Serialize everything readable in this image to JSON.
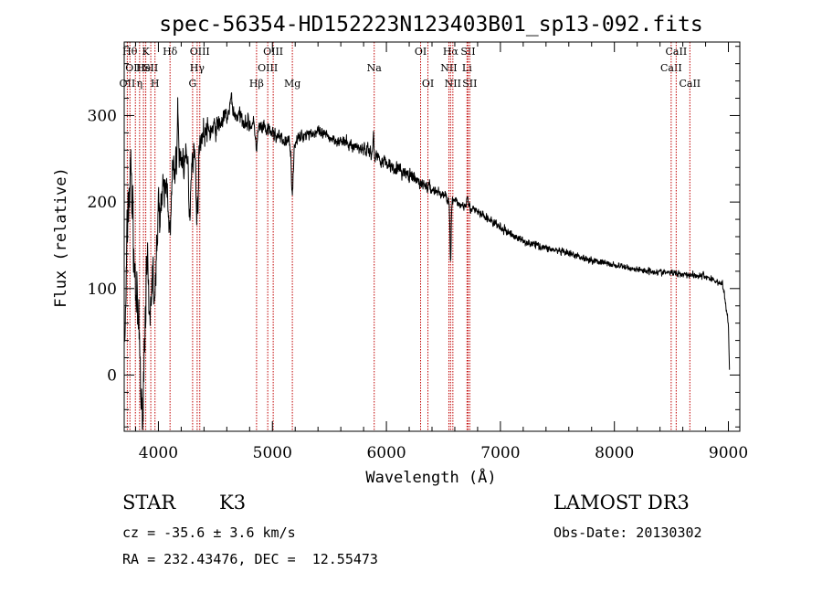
{
  "chart_data": {
    "type": "line",
    "title": "spec-56354-HD152223N123403B01_sp13-092.fits",
    "xlabel": "Wavelength (Å)",
    "ylabel": "Flux (relative)",
    "xlim": [
      3700,
      9100
    ],
    "ylim": [
      -65,
      385
    ],
    "xticks": [
      4000,
      5000,
      6000,
      7000,
      8000,
      9000
    ],
    "xtick_labels": [
      "4000",
      "5000",
      "6000",
      "7000",
      "8000",
      "9000"
    ],
    "yticks": [
      0,
      100,
      200,
      300
    ],
    "ytick_labels": [
      "0",
      "100",
      "200",
      "300"
    ],
    "line_color": "#000000",
    "marker_color": "#c00000",
    "spectrum_anchors": [
      [
        3710,
        50
      ],
      [
        3730,
        180
      ],
      [
        3760,
        240
      ],
      [
        3790,
        120
      ],
      [
        3820,
        60
      ],
      [
        3850,
        30
      ],
      [
        3880,
        80
      ],
      [
        3910,
        150
      ],
      [
        3940,
        110
      ],
      [
        3970,
        170
      ],
      [
        4000,
        190
      ],
      [
        4050,
        210
      ],
      [
        4100,
        230
      ],
      [
        4150,
        240
      ],
      [
        4200,
        250
      ],
      [
        4250,
        245
      ],
      [
        4300,
        255
      ],
      [
        4350,
        270
      ],
      [
        4400,
        280
      ],
      [
        4500,
        285
      ],
      [
        4600,
        300
      ],
      [
        4700,
        300
      ],
      [
        4800,
        290
      ],
      [
        4900,
        285
      ],
      [
        5000,
        280
      ],
      [
        5100,
        270
      ],
      [
        5200,
        270
      ],
      [
        5300,
        280
      ],
      [
        5400,
        280
      ],
      [
        5500,
        275
      ],
      [
        5600,
        270
      ],
      [
        5700,
        265
      ],
      [
        5800,
        262
      ],
      [
        5900,
        255
      ],
      [
        6000,
        245
      ],
      [
        6100,
        238
      ],
      [
        6200,
        230
      ],
      [
        6300,
        222
      ],
      [
        6400,
        215
      ],
      [
        6500,
        208
      ],
      [
        6600,
        200
      ],
      [
        6700,
        195
      ],
      [
        6800,
        188
      ],
      [
        6900,
        180
      ],
      [
        7000,
        170
      ],
      [
        7200,
        155
      ],
      [
        7400,
        147
      ],
      [
        7600,
        140
      ],
      [
        7800,
        133
      ],
      [
        8000,
        127
      ],
      [
        8200,
        122
      ],
      [
        8400,
        119
      ],
      [
        8600,
        117
      ],
      [
        8800,
        114
      ],
      [
        8950,
        105
      ],
      [
        9000,
        60
      ],
      [
        9010,
        0
      ]
    ],
    "spectrum_features": [
      [
        3860,
        -100,
        12
      ],
      [
        3920,
        -80,
        10
      ],
      [
        3970,
        -90,
        10
      ],
      [
        4102,
        -70,
        10
      ],
      [
        4170,
        60,
        6
      ],
      [
        4275,
        -60,
        8
      ],
      [
        4340,
        -80,
        10
      ],
      [
        4640,
        20,
        10
      ],
      [
        4861,
        -25,
        8
      ],
      [
        5175,
        -60,
        8
      ],
      [
        5890,
        45,
        6
      ],
      [
        5893,
        -40,
        5
      ],
      [
        6563,
        -75,
        5
      ],
      [
        6710,
        15,
        8
      ]
    ],
    "spectrum_noise": [
      [
        3700,
        60
      ],
      [
        3950,
        40
      ],
      [
        4200,
        28
      ],
      [
        4600,
        15
      ],
      [
        5000,
        12
      ],
      [
        5500,
        9
      ],
      [
        6000,
        12
      ],
      [
        6500,
        9
      ],
      [
        7000,
        7
      ],
      [
        8000,
        5
      ],
      [
        9000,
        6
      ]
    ],
    "line_markers": [
      {
        "wavelength": 3727,
        "label": "OII",
        "row": 3
      },
      {
        "wavelength": 3750,
        "label": "Hθ",
        "row": 1
      },
      {
        "wavelength": 3798,
        "label": "OIII",
        "row": 2
      },
      {
        "wavelength": 3835,
        "label": "η",
        "row": 3
      },
      {
        "wavelength": 3869,
        "label": "He",
        "row": 2
      },
      {
        "wavelength": 3889,
        "label": "K",
        "row": 1
      },
      {
        "wavelength": 3933,
        "label": "SII",
        "row": 2
      },
      {
        "wavelength": 3970,
        "label": "H",
        "row": 3
      },
      {
        "wavelength": 4102,
        "label": "Hδ",
        "row": 1
      },
      {
        "wavelength": 4300,
        "label": "G",
        "row": 3
      },
      {
        "wavelength": 4340,
        "label": "Hγ",
        "row": 2
      },
      {
        "wavelength": 4363,
        "label": "OIII",
        "row": 1
      },
      {
        "wavelength": 4861,
        "label": "Hβ",
        "row": 3
      },
      {
        "wavelength": 4959,
        "label": "OIII",
        "row": 2
      },
      {
        "wavelength": 5007,
        "label": "OIII",
        "row": 1
      },
      {
        "wavelength": 5175,
        "label": "Mg",
        "row": 3
      },
      {
        "wavelength": 5893,
        "label": "Na",
        "row": 2
      },
      {
        "wavelength": 6300,
        "label": "OI",
        "row": 1
      },
      {
        "wavelength": 6364,
        "label": "OI",
        "row": 3
      },
      {
        "wavelength": 6548,
        "label": "NII",
        "row": 2
      },
      {
        "wavelength": 6563,
        "label": "Hα",
        "row": 1
      },
      {
        "wavelength": 6583,
        "label": "NII",
        "row": 3
      },
      {
        "wavelength": 6707,
        "label": "Li",
        "row": 2
      },
      {
        "wavelength": 6716,
        "label": "SII",
        "row": 1
      },
      {
        "wavelength": 6731,
        "label": "SII",
        "row": 3
      },
      {
        "wavelength": 8498,
        "label": "CaII",
        "row": 2
      },
      {
        "wavelength": 8542,
        "label": "CaII",
        "row": 1
      },
      {
        "wavelength": 8662,
        "label": "CaII",
        "row": 3
      }
    ]
  },
  "info": {
    "object_class": "STAR",
    "subclass": "K3",
    "survey": "LAMOST DR3",
    "cz": "cz = -35.6 ± 3.6 km/s",
    "obs_date": "Obs-Date: 20130302",
    "coords": "RA = 232.43476, DEC =  12.55473"
  }
}
